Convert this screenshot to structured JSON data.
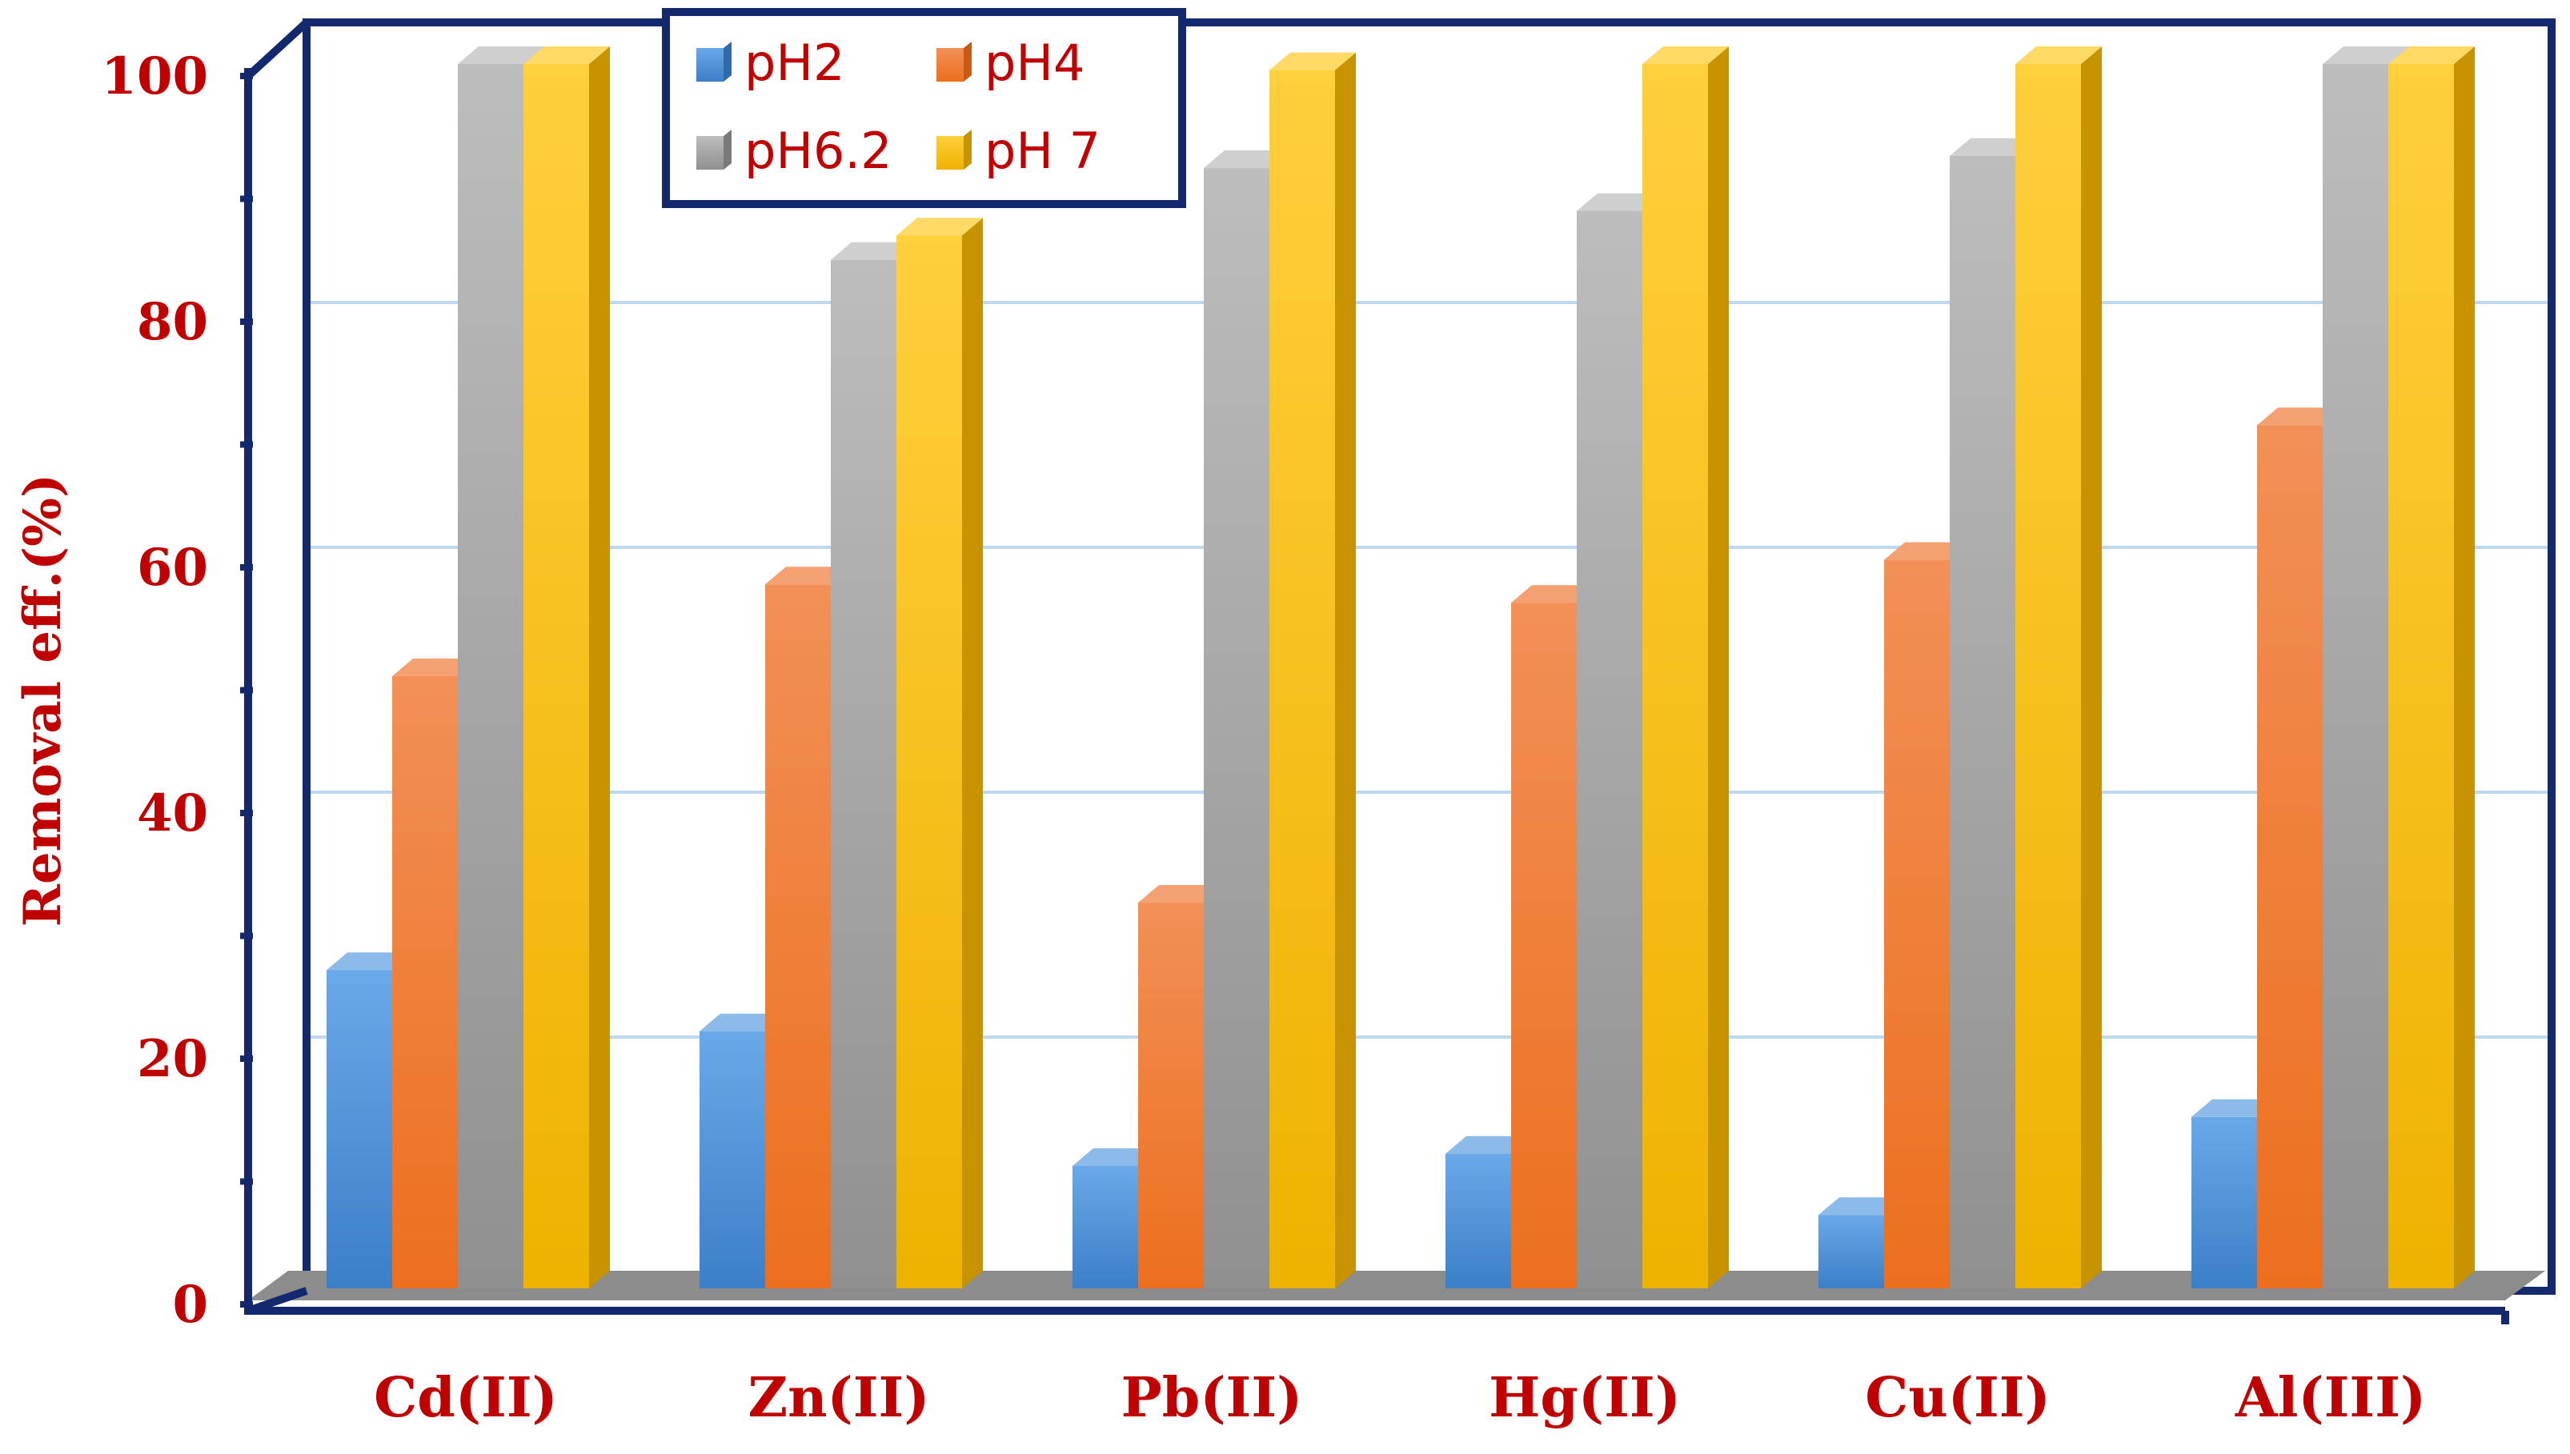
{
  "chart_data": {
    "type": "bar",
    "title": "",
    "xlabel": "",
    "ylabel": "Removal eff.(%)",
    "ylim": [
      0,
      100
    ],
    "yticks": [
      0,
      20,
      40,
      60,
      80,
      100
    ],
    "grid": true,
    "legend_position": "top-left",
    "categories": [
      "Cd(II)",
      "Zn(II)",
      "Pb(II)",
      "Hg(II)",
      "Cu(II)",
      "Al(III)"
    ],
    "series": [
      {
        "name": "pH2",
        "color": "#4a90d9",
        "values": [
          26,
          21,
          10,
          11,
          6,
          14
        ]
      },
      {
        "name": "pH4",
        "color": "#f07a30",
        "values": [
          50,
          57.5,
          31.5,
          56,
          59.5,
          70.5
        ]
      },
      {
        "name": "pH6.2",
        "color": "#a6a6a6",
        "values": [
          100,
          84,
          91.5,
          88,
          92.5,
          100
        ]
      },
      {
        "name": "pH 7",
        "color": "#ffc000",
        "values": [
          100,
          86,
          99.5,
          100,
          100,
          100
        ]
      }
    ]
  }
}
